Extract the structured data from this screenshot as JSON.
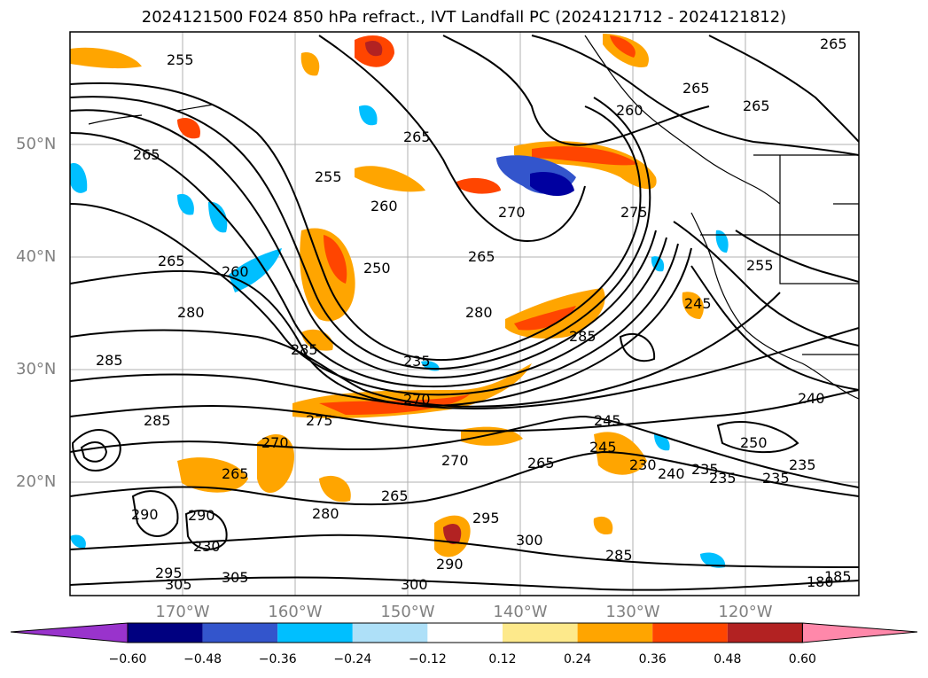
{
  "title": "2024121500 F024 850 hPa refract., IVT Landfall PC (2024121712 - 2024121812)",
  "map": {
    "lat_labels": [
      {
        "text": "50°N",
        "lat": 50
      },
      {
        "text": "40°N",
        "lat": 40
      },
      {
        "text": "30°N",
        "lat": 30
      },
      {
        "text": "20°N",
        "lat": 20
      }
    ],
    "lon_labels": [
      {
        "text": "170°W",
        "lon": -170
      },
      {
        "text": "160°W",
        "lon": -160
      },
      {
        "text": "150°W",
        "lon": -150
      },
      {
        "text": "140°W",
        "lon": -140
      },
      {
        "text": "130°W",
        "lon": -130
      },
      {
        "text": "120°W",
        "lon": -120
      }
    ],
    "contour_labels": [
      "255",
      "265",
      "265",
      "255",
      "260",
      "265",
      "270",
      "275",
      "265",
      "260",
      "265",
      "265",
      "265",
      "260",
      "250",
      "245",
      "255",
      "280",
      "285",
      "235",
      "270",
      "285",
      "285",
      "280",
      "285",
      "275",
      "265",
      "230",
      "240",
      "270",
      "250",
      "245",
      "235",
      "235",
      "300",
      "305",
      "295",
      "290",
      "295",
      "305",
      "300",
      "290",
      "285",
      "290",
      "280",
      "265",
      "270",
      "265",
      "240",
      "230",
      "245",
      "235",
      "235",
      "180",
      "185"
    ]
  },
  "colorbar": {
    "ticks": [
      "−0.60",
      "−0.48",
      "−0.36",
      "−0.24",
      "−0.12",
      "0.12",
      "0.24",
      "0.36",
      "0.48",
      "0.60"
    ],
    "colors": [
      "#9933cc",
      "#000080",
      "#3355cc",
      "#00bfff",
      "#aee0f8",
      "#ffffff",
      "#fde98b",
      "#ffa500",
      "#ff4500",
      "#b22222",
      "#ff88aa"
    ]
  }
}
